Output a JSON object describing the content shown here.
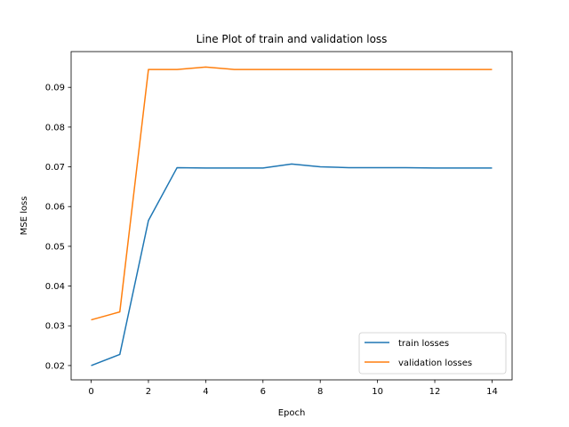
{
  "chart_data": {
    "type": "line",
    "title": "Line Plot of train and validation loss",
    "xlabel": "Epoch",
    "ylabel": "MSE loss",
    "xlim": [
      -0.7,
      14.7
    ],
    "ylim": [
      0.0164,
      0.099
    ],
    "xticks": [
      0,
      2,
      4,
      6,
      8,
      10,
      12,
      14
    ],
    "yticks": [
      0.02,
      0.03,
      0.04,
      0.05,
      0.06,
      0.07,
      0.08,
      0.09
    ],
    "xtick_labels": [
      "0",
      "2",
      "4",
      "6",
      "8",
      "10",
      "12",
      "14"
    ],
    "ytick_labels": [
      "0.02",
      "0.03",
      "0.04",
      "0.05",
      "0.06",
      "0.07",
      "0.08",
      "0.09"
    ],
    "grid": false,
    "legend_position": "bottom-right",
    "x": [
      0,
      1,
      2,
      3,
      4,
      5,
      6,
      7,
      8,
      9,
      10,
      11,
      12,
      13,
      14
    ],
    "series": [
      {
        "name": "train losses",
        "color": "#1f77b4",
        "values": [
          0.02,
          0.0228,
          0.0565,
          0.0698,
          0.0697,
          0.0697,
          0.0697,
          0.0707,
          0.07,
          0.0698,
          0.0698,
          0.0698,
          0.0697,
          0.0697,
          0.0697
        ]
      },
      {
        "name": "validation losses",
        "color": "#ff7f0e",
        "values": [
          0.0315,
          0.0335,
          0.0945,
          0.0945,
          0.0951,
          0.0945,
          0.0945,
          0.0945,
          0.0945,
          0.0945,
          0.0945,
          0.0945,
          0.0945,
          0.0945,
          0.0945
        ]
      }
    ]
  }
}
